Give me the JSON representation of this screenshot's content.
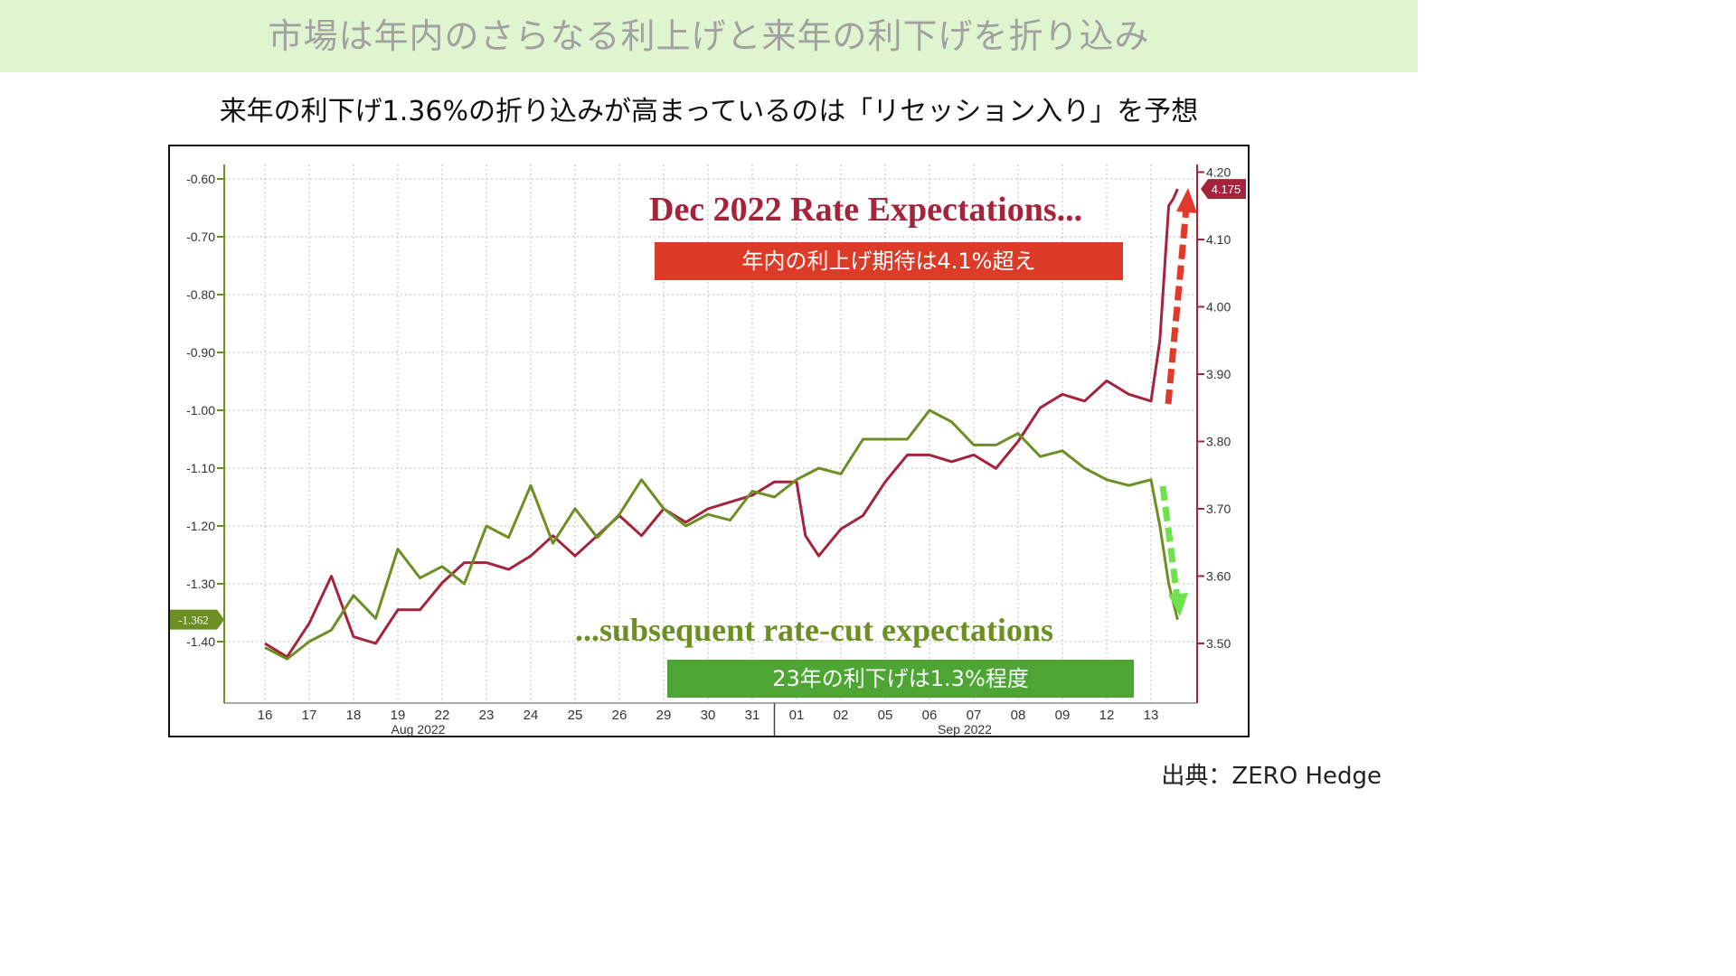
{
  "header": {
    "title": "市場は年内のさらなる利上げと来年の利下げを折り込み"
  },
  "subtitle": "来年の利下げ1.36%の折り込みが高まっているのは「リセッション入り」を予想",
  "annotations": {
    "title_red": "Dec 2022 Rate Expectations...",
    "title_green": "...subsequent rate-cut expectations",
    "box_red": "年内の利上げ期待は4.1%超え",
    "box_green": "23年の利下げは1.3%程度"
  },
  "source": "出典：ZERO Hedge",
  "colors": {
    "header_band": "#def5cf",
    "red_series": "#a3243b",
    "green_series": "#6b8f23",
    "red_box": "#dc3b27",
    "green_box": "#4da534",
    "red_arrow": "#e03a2b",
    "green_arrow": "#6ee24a"
  },
  "chart_data": {
    "type": "line",
    "x_ticks": [
      "16",
      "17",
      "18",
      "19",
      "22",
      "23",
      "24",
      "25",
      "26",
      "29",
      "30",
      "31",
      "01",
      "02",
      "05",
      "06",
      "07",
      "08",
      "09",
      "12",
      "13"
    ],
    "x_months": [
      "Aug 2022",
      "Sep 2022"
    ],
    "y_left": {
      "ticks": [
        "-0.60",
        "-0.70",
        "-0.80",
        "-0.90",
        "-1.00",
        "-1.10",
        "-1.20",
        "-1.30",
        "-1.40"
      ],
      "range": [
        -1.5,
        -0.59
      ]
    },
    "y_right": {
      "ticks": [
        "4.20",
        "4.10",
        "4.00",
        "3.90",
        "3.80",
        "3.70",
        "3.60",
        "3.50"
      ],
      "range": [
        3.42,
        4.21
      ]
    },
    "last_value_labels": {
      "left": "-1.362",
      "right": "4.175"
    },
    "series": [
      {
        "axis": "right",
        "x": [
          0,
          0.5,
          1,
          1.5,
          2,
          2.5,
          3,
          3.5,
          4,
          4.5,
          5,
          5.5,
          6,
          6.5,
          7,
          7.5,
          8,
          8.5,
          9,
          9.5,
          10,
          10.5,
          11,
          11.5,
          12,
          12.2,
          12.5,
          13,
          13.5,
          14,
          14.5,
          15,
          15.5,
          16,
          16.5,
          17,
          17.5,
          18,
          18.5,
          19,
          19.5,
          20,
          20.2,
          20.4,
          20.5,
          20.6
        ],
        "values": [
          3.5,
          3.48,
          3.53,
          3.6,
          3.51,
          3.5,
          3.55,
          3.55,
          3.59,
          3.62,
          3.62,
          3.61,
          3.63,
          3.66,
          3.63,
          3.66,
          3.69,
          3.66,
          3.7,
          3.68,
          3.7,
          3.71,
          3.72,
          3.74,
          3.74,
          3.66,
          3.63,
          3.67,
          3.69,
          3.74,
          3.78,
          3.78,
          3.77,
          3.78,
          3.76,
          3.8,
          3.85,
          3.87,
          3.86,
          3.89,
          3.87,
          3.86,
          3.95,
          4.15,
          4.16,
          4.175
        ]
      },
      {
        "axis": "left",
        "x": [
          0,
          0.5,
          1,
          1.5,
          2,
          2.5,
          3,
          3.5,
          4,
          4.5,
          5,
          5.5,
          6,
          6.5,
          7,
          7.5,
          8,
          8.5,
          9,
          9.5,
          10,
          10.5,
          11,
          11.5,
          12,
          12.5,
          13,
          13.5,
          14,
          14.5,
          15,
          15.5,
          16,
          16.5,
          17,
          17.5,
          18,
          18.5,
          19,
          19.5,
          20,
          20.2,
          20.4,
          20.6
        ],
        "values": [
          -1.41,
          -1.43,
          -1.4,
          -1.38,
          -1.32,
          -1.36,
          -1.24,
          -1.29,
          -1.27,
          -1.3,
          -1.2,
          -1.22,
          -1.13,
          -1.23,
          -1.17,
          -1.22,
          -1.18,
          -1.12,
          -1.17,
          -1.2,
          -1.18,
          -1.19,
          -1.14,
          -1.15,
          -1.12,
          -1.1,
          -1.11,
          -1.05,
          -1.05,
          -1.05,
          -1.0,
          -1.02,
          -1.06,
          -1.06,
          -1.04,
          -1.08,
          -1.07,
          -1.1,
          -1.12,
          -1.13,
          -1.12,
          -1.2,
          -1.3,
          -1.362
        ]
      }
    ]
  }
}
